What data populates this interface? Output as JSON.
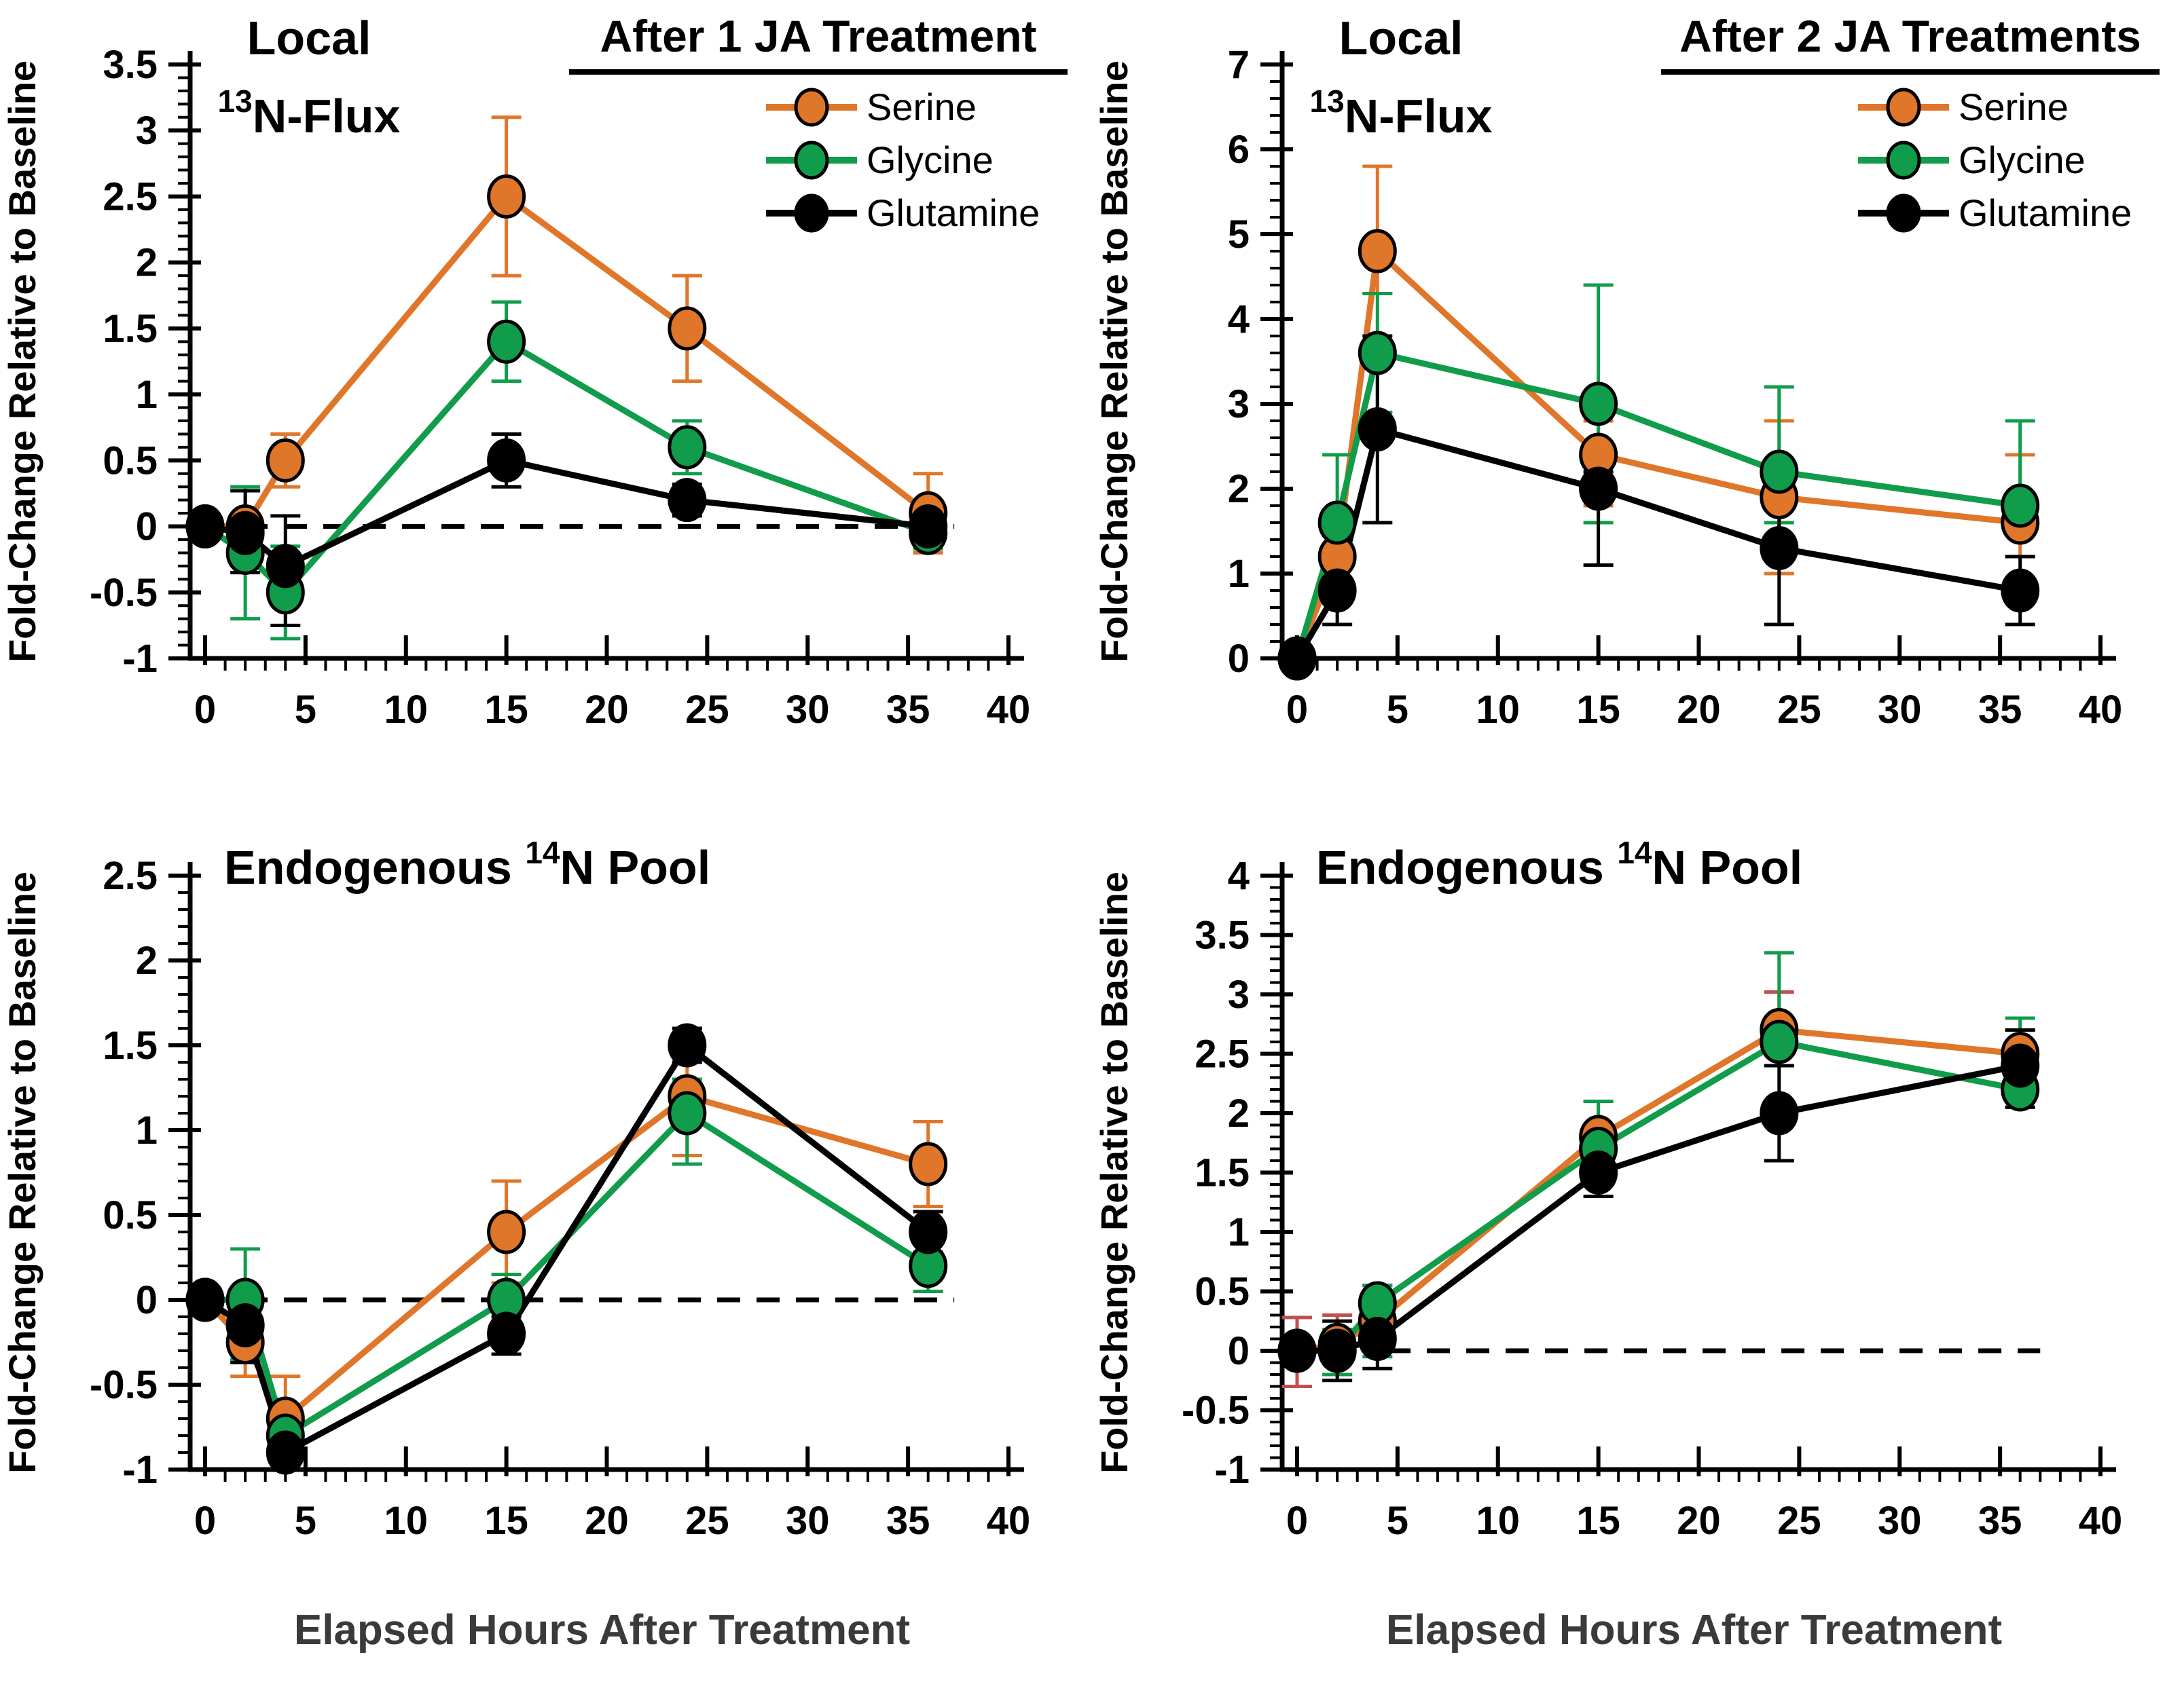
{
  "figure": {
    "background": "#ffffff",
    "accent_colors": {
      "serine": "#E0762A",
      "glycine": "#119C4B",
      "glutamine": "#000000",
      "serine_error_alt": "#C0504D"
    }
  },
  "chart_data": [
    {
      "type": "line",
      "position": "top-left",
      "title": {
        "anchor": "middle",
        "x": 455,
        "lines": [
          [
            {
              "t": "Local"
            }
          ],
          [
            {
              "t": "13",
              "sup": true
            },
            {
              "t": "N-Flux"
            }
          ]
        ]
      },
      "header": "After 1 JA Treatment",
      "legend": [
        "Serine",
        "Glycine",
        "Glutamine"
      ],
      "legend_position": "top-right",
      "ylabel": "Fold-Change Relative to Baseline",
      "xlabel": null,
      "ylim": [
        -1,
        3.5
      ],
      "ymajor": 0.5,
      "yminor": 0.1,
      "xlim": [
        0,
        40
      ],
      "xmajor": 5,
      "xminor": 1,
      "grid": false,
      "zero_line": {
        "dashed": true,
        "from": 0,
        "to": 37.3
      },
      "x": [
        0,
        2,
        4,
        15,
        24,
        36
      ],
      "series": [
        {
          "name": "Serine",
          "color": "#E0762A",
          "err_color": "#E0762A",
          "values": [
            0,
            0,
            0.5,
            2.5,
            1.5,
            0.1
          ],
          "err_up": [
            0,
            0.05,
            0.2,
            0.6,
            0.4,
            0.3
          ],
          "err_down": [
            0,
            0.05,
            0.2,
            0.6,
            0.4,
            0.3
          ]
        },
        {
          "name": "Glycine",
          "color": "#119C4B",
          "err_color": "#119C4B",
          "values": [
            0,
            -0.2,
            -0.5,
            1.4,
            0.6,
            -0.05
          ],
          "err_up": [
            0,
            0.5,
            0.35,
            0.3,
            0.2,
            0.1
          ],
          "err_down": [
            0,
            0.5,
            0.35,
            0.3,
            0.2,
            0.12
          ]
        },
        {
          "name": "Glutamine",
          "color": "#000000",
          "err_color": "#000000",
          "values": [
            0,
            -0.05,
            -0.3,
            0.5,
            0.2,
            0
          ],
          "err_up": [
            0.07,
            0.32,
            0.38,
            0.2,
            0.12,
            0.06
          ],
          "err_down": [
            0.07,
            0.3,
            0.45,
            0.2,
            0.12,
            0.06
          ]
        }
      ]
    },
    {
      "type": "line",
      "position": "top-right",
      "title": {
        "anchor": "middle",
        "x": 455,
        "lines": [
          [
            {
              "t": "Local"
            }
          ],
          [
            {
              "t": "13",
              "sup": true
            },
            {
              "t": "N-Flux"
            }
          ]
        ]
      },
      "header": "After 2 JA Treatments",
      "legend": [
        "Serine",
        "Glycine",
        "Glutamine"
      ],
      "legend_position": "top-right",
      "ylabel": "Fold-Change Relative to Baseline",
      "xlabel": null,
      "ylim": [
        0,
        7
      ],
      "ymajor": 1,
      "yminor": 0.2,
      "xlim": [
        0,
        40
      ],
      "xmajor": 5,
      "xminor": 1,
      "grid": false,
      "zero_line": null,
      "x": [
        0,
        2,
        4,
        15,
        24,
        36
      ],
      "series": [
        {
          "name": "Serine",
          "color": "#E0762A",
          "err_color": "#E0762A",
          "values": [
            0,
            1.2,
            4.8,
            2.4,
            1.9,
            1.6
          ],
          "err_up": [
            0,
            0.3,
            1.0,
            0.4,
            0.9,
            0.8
          ],
          "err_down": [
            0,
            0.3,
            0.5,
            0.6,
            0.9,
            0.4
          ]
        },
        {
          "name": "Glycine",
          "color": "#119C4B",
          "err_color": "#119C4B",
          "values": [
            0,
            1.6,
            3.6,
            3.0,
            2.2,
            1.8
          ],
          "err_up": [
            0,
            0.8,
            0.7,
            1.4,
            1.0,
            1.0
          ],
          "err_down": [
            0,
            0.4,
            0.7,
            1.4,
            0.6,
            0.3
          ]
        },
        {
          "name": "Glutamine",
          "color": "#000000",
          "err_color": "#000000",
          "values": [
            0,
            0.8,
            2.7,
            2.0,
            1.3,
            0.8
          ],
          "err_up": [
            0,
            0.3,
            1.1,
            0.2,
            0.9,
            0.4
          ],
          "err_down": [
            0,
            0.4,
            1.1,
            0.9,
            0.9,
            0.4
          ]
        }
      ]
    },
    {
      "type": "line",
      "position": "bottom-left",
      "title": {
        "anchor": "start",
        "x": 330,
        "lines": [
          [
            {
              "t": "Endogenous "
            },
            {
              "t": "14",
              "sup": true
            },
            {
              "t": "N Pool"
            }
          ]
        ]
      },
      "header": null,
      "legend": null,
      "ylabel": "Fold-Change Relative to Baseline",
      "xlabel": "Elapsed Hours After Treatment",
      "ylim": [
        -1,
        2.5
      ],
      "ymajor": 0.5,
      "yminor": 0.1,
      "xlim": [
        0,
        40
      ],
      "xmajor": 5,
      "xminor": 1,
      "grid": false,
      "zero_line": {
        "dashed": true,
        "from": 0,
        "to": 37.3
      },
      "x": [
        0,
        2,
        4,
        15,
        24,
        36
      ],
      "series": [
        {
          "name": "Serine",
          "color": "#E0762A",
          "err_color": "#E0762A",
          "values": [
            0,
            -0.25,
            -0.7,
            0.4,
            1.2,
            0.8
          ],
          "err_up": [
            0,
            0.2,
            0.25,
            0.3,
            0.2,
            0.25
          ],
          "err_down": [
            0,
            0.2,
            0.3,
            0.3,
            0.35,
            0.25
          ]
        },
        {
          "name": "Glycine",
          "color": "#119C4B",
          "err_color": "#119C4B",
          "values": [
            0,
            0,
            -0.8,
            0,
            1.1,
            0.2
          ],
          "err_up": [
            0,
            0.3,
            0.12,
            0.15,
            0.2,
            0.15
          ],
          "err_down": [
            0,
            0.35,
            0.12,
            0.15,
            0.3,
            0.15
          ]
        },
        {
          "name": "Glutamine",
          "color": "#000000",
          "err_color": "#000000",
          "values": [
            0,
            -0.15,
            -0.9,
            -0.2,
            1.5,
            0.4
          ],
          "err_up": [
            0.07,
            0.22,
            0.1,
            0.1,
            0.1,
            0.12
          ],
          "err_down": [
            0.07,
            0.22,
            0.1,
            0.12,
            0.1,
            0.12
          ]
        }
      ]
    },
    {
      "type": "line",
      "position": "bottom-right",
      "title": {
        "anchor": "start",
        "x": 330,
        "lines": [
          [
            {
              "t": "Endogenous "
            },
            {
              "t": "14",
              "sup": true
            },
            {
              "t": "N Pool"
            }
          ]
        ]
      },
      "header": null,
      "legend": null,
      "ylabel": "Fold-Change Relative to Baseline",
      "xlabel": "Elapsed Hours After Treatment",
      "ylim": [
        -1,
        4
      ],
      "ymajor": 0.5,
      "yminor": 0.1,
      "xlim": [
        0,
        40
      ],
      "xmajor": 5,
      "xminor": 1,
      "grid": false,
      "zero_line": {
        "dashed": true,
        "from": 4.5,
        "to": 37
      },
      "x": [
        0,
        2,
        4,
        15,
        24,
        36
      ],
      "series": [
        {
          "name": "Serine",
          "color": "#E0762A",
          "err_color": "#C0504D",
          "values": [
            0,
            0.05,
            0.25,
            1.8,
            2.7,
            2.5
          ],
          "err_up": [
            0.28,
            0.25,
            0.3,
            0.3,
            0.32,
            0.2
          ],
          "err_down": [
            0.3,
            0.25,
            0.12,
            0.5,
            0.3,
            0.2
          ]
        },
        {
          "name": "Glycine",
          "color": "#119C4B",
          "err_color": "#119C4B",
          "values": [
            0,
            0,
            0.4,
            1.7,
            2.6,
            2.2
          ],
          "err_up": [
            0.1,
            0.18,
            0.15,
            0.4,
            0.75,
            0.6
          ],
          "err_down": [
            0.1,
            0.2,
            0.45,
            0.2,
            0.2,
            0.15
          ]
        },
        {
          "name": "Glutamine",
          "color": "#000000",
          "err_color": "#000000",
          "values": [
            0,
            0,
            0.1,
            1.5,
            2.0,
            2.4
          ],
          "err_up": [
            0.05,
            0.25,
            0.2,
            0.15,
            0.4,
            0.3
          ],
          "err_down": [
            0.05,
            0.25,
            0.25,
            0.2,
            0.4,
            0.35
          ]
        }
      ]
    }
  ]
}
